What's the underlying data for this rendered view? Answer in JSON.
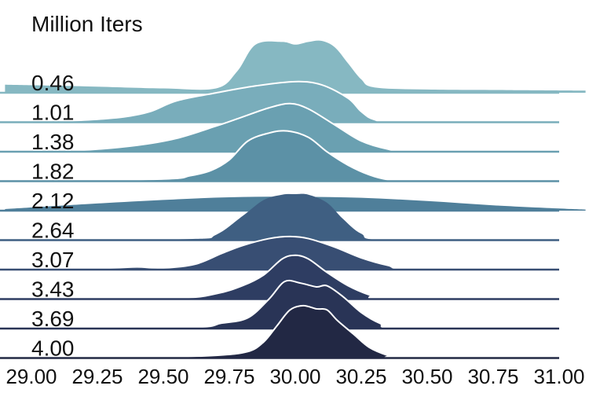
{
  "chart_data": {
    "type": "area",
    "subtype": "ridgeline",
    "title": "Million Iters",
    "xlabel": "",
    "ylabel": "",
    "xlim": [
      29.0,
      31.0
    ],
    "x_ticks": [
      29.0,
      29.25,
      29.5,
      29.75,
      30.0,
      30.25,
      30.5,
      30.75,
      31.0
    ],
    "x_tick_labels": [
      "29.00",
      "29.25",
      "29.50",
      "29.75",
      "30.00",
      "30.25",
      "30.50",
      "30.75",
      "31.00"
    ],
    "grid": false,
    "legend": "none",
    "series": [
      {
        "label": "0.46",
        "color": "#86b8c2",
        "outline": false,
        "points": [
          [
            28.9,
            0.15
          ],
          [
            29.2,
            0.12
          ],
          [
            29.5,
            0.08
          ],
          [
            29.7,
            0.08
          ],
          [
            29.78,
            0.4
          ],
          [
            29.85,
            0.9
          ],
          [
            29.95,
            0.95
          ],
          [
            30.0,
            0.9
          ],
          [
            30.05,
            0.95
          ],
          [
            30.1,
            0.97
          ],
          [
            30.15,
            0.85
          ],
          [
            30.2,
            0.55
          ],
          [
            30.25,
            0.25
          ],
          [
            30.3,
            0.1
          ],
          [
            30.5,
            0.06
          ],
          [
            30.8,
            0.05
          ],
          [
            31.1,
            0.04
          ]
        ]
      },
      {
        "label": "1.01",
        "color": "#79adbb",
        "outline": true,
        "points": [
          [
            29.0,
            0
          ],
          [
            29.2,
            0.04
          ],
          [
            29.35,
            0.1
          ],
          [
            29.45,
            0.2
          ],
          [
            29.55,
            0.4
          ],
          [
            29.7,
            0.55
          ],
          [
            29.85,
            0.68
          ],
          [
            30.0,
            0.76
          ],
          [
            30.1,
            0.7
          ],
          [
            30.2,
            0.45
          ],
          [
            30.25,
            0.2
          ],
          [
            30.3,
            0.05
          ],
          [
            30.4,
            0
          ],
          [
            31.0,
            0
          ]
        ]
      },
      {
        "label": "1.38",
        "color": "#6aa0b1",
        "outline": true,
        "points": [
          [
            29.0,
            0
          ],
          [
            29.2,
            0.03
          ],
          [
            29.4,
            0.12
          ],
          [
            29.55,
            0.25
          ],
          [
            29.7,
            0.48
          ],
          [
            29.8,
            0.65
          ],
          [
            29.9,
            0.82
          ],
          [
            29.98,
            0.9
          ],
          [
            30.05,
            0.8
          ],
          [
            30.15,
            0.5
          ],
          [
            30.25,
            0.2
          ],
          [
            30.35,
            0.05
          ],
          [
            30.45,
            0
          ],
          [
            31.0,
            0
          ]
        ]
      },
      {
        "label": "1.82",
        "color": "#5c91a6",
        "outline": true,
        "points": [
          [
            29.0,
            0
          ],
          [
            29.5,
            0.04
          ],
          [
            29.6,
            0.1
          ],
          [
            29.68,
            0.2
          ],
          [
            29.75,
            0.4
          ],
          [
            29.82,
            0.75
          ],
          [
            29.9,
            0.9
          ],
          [
            29.97,
            0.94
          ],
          [
            30.05,
            0.82
          ],
          [
            30.12,
            0.55
          ],
          [
            30.2,
            0.3
          ],
          [
            30.28,
            0.12
          ],
          [
            30.35,
            0.03
          ],
          [
            30.45,
            0
          ],
          [
            31.0,
            0
          ]
        ]
      },
      {
        "label": "2.12",
        "color": "#4f7f9a",
        "outline": false,
        "points": [
          [
            28.9,
            0.03
          ],
          [
            29.2,
            0.12
          ],
          [
            29.5,
            0.2
          ],
          [
            29.75,
            0.25
          ],
          [
            30.0,
            0.26
          ],
          [
            30.25,
            0.24
          ],
          [
            30.5,
            0.18
          ],
          [
            30.75,
            0.1
          ],
          [
            31.0,
            0.04
          ],
          [
            31.1,
            0.02
          ]
        ]
      },
      {
        "label": "2.64",
        "color": "#3f5f82",
        "outline": false,
        "points": [
          [
            29.0,
            0
          ],
          [
            29.6,
            0.02
          ],
          [
            29.7,
            0.1
          ],
          [
            29.8,
            0.45
          ],
          [
            29.88,
            0.75
          ],
          [
            29.95,
            0.85
          ],
          [
            30.0,
            0.86
          ],
          [
            30.05,
            0.85
          ],
          [
            30.12,
            0.7
          ],
          [
            30.18,
            0.4
          ],
          [
            30.25,
            0.12
          ],
          [
            30.35,
            0
          ],
          [
            31.0,
            0
          ]
        ]
      },
      {
        "label": "3.07",
        "color": "#384e73",
        "outline": true,
        "points": [
          [
            29.0,
            0
          ],
          [
            29.3,
            0.03
          ],
          [
            29.4,
            0.05
          ],
          [
            29.5,
            0.03
          ],
          [
            29.62,
            0.1
          ],
          [
            29.72,
            0.3
          ],
          [
            29.8,
            0.45
          ],
          [
            29.9,
            0.58
          ],
          [
            29.98,
            0.62
          ],
          [
            30.05,
            0.58
          ],
          [
            30.15,
            0.42
          ],
          [
            30.25,
            0.22
          ],
          [
            30.35,
            0.08
          ],
          [
            30.45,
            0
          ],
          [
            31.0,
            0
          ]
        ]
      },
      {
        "label": "3.43",
        "color": "#2e3d62",
        "outline": true,
        "points": [
          [
            29.0,
            0
          ],
          [
            29.55,
            0.02
          ],
          [
            29.7,
            0.1
          ],
          [
            29.8,
            0.25
          ],
          [
            29.88,
            0.45
          ],
          [
            29.95,
            0.75
          ],
          [
            30.0,
            0.82
          ],
          [
            30.05,
            0.75
          ],
          [
            30.12,
            0.5
          ],
          [
            30.2,
            0.25
          ],
          [
            30.28,
            0.08
          ],
          [
            30.35,
            0
          ],
          [
            31.0,
            0
          ]
        ]
      },
      {
        "label": "3.69",
        "color": "#293456",
        "outline": true,
        "points": [
          [
            29.0,
            0
          ],
          [
            29.6,
            0.02
          ],
          [
            29.72,
            0.1
          ],
          [
            29.82,
            0.2
          ],
          [
            29.9,
            0.55
          ],
          [
            29.96,
            0.88
          ],
          [
            30.02,
            0.85
          ],
          [
            30.08,
            0.78
          ],
          [
            30.12,
            0.8
          ],
          [
            30.18,
            0.6
          ],
          [
            30.25,
            0.3
          ],
          [
            30.32,
            0.1
          ],
          [
            30.4,
            0
          ],
          [
            31.0,
            0
          ]
        ]
      },
      {
        "label": "4.00",
        "color": "#222844",
        "outline": true,
        "points": [
          [
            29.0,
            0
          ],
          [
            29.5,
            0.02
          ],
          [
            29.7,
            0.05
          ],
          [
            29.82,
            0.12
          ],
          [
            29.88,
            0.3
          ],
          [
            29.93,
            0.6
          ],
          [
            29.98,
            0.9
          ],
          [
            30.03,
            0.98
          ],
          [
            30.08,
            0.92
          ],
          [
            30.12,
            0.9
          ],
          [
            30.16,
            0.7
          ],
          [
            30.22,
            0.45
          ],
          [
            30.28,
            0.2
          ],
          [
            30.35,
            0.05
          ],
          [
            30.4,
            0
          ],
          [
            31.0,
            0
          ]
        ]
      }
    ]
  }
}
